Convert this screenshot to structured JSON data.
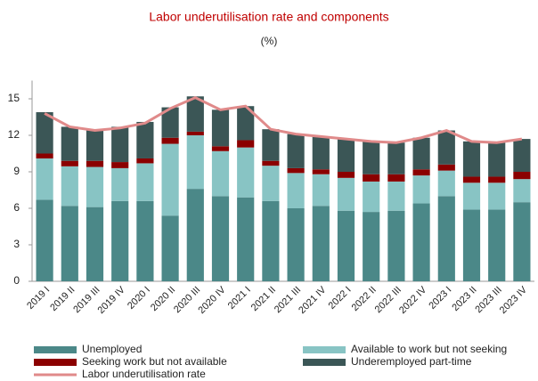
{
  "chart_data": {
    "type": "bar",
    "stacked": true,
    "title": "Labor underutilisation rate and components",
    "subtitle": "(%)",
    "categories": [
      "2019 I",
      "2019 II",
      "2019 III",
      "2019 IV",
      "2020 I",
      "2020 II",
      "2020 III",
      "2020 IV",
      "2021 I",
      "2021 II",
      "2021 III",
      "2021 IV",
      "2022 I",
      "2022 II",
      "2022 III",
      "2022 IV",
      "2023 I",
      "2023 II",
      "2023 III",
      "2023 IV"
    ],
    "series": [
      {
        "name": "Unemployed",
        "color": "#4b8888",
        "values": [
          6.7,
          6.2,
          6.1,
          6.6,
          6.6,
          5.4,
          7.6,
          7.0,
          6.9,
          6.6,
          6.0,
          6.2,
          5.8,
          5.7,
          5.8,
          6.4,
          7.0,
          5.9,
          5.9,
          6.5
        ]
      },
      {
        "name": "Available to work but not seeking",
        "color": "#88c4c4",
        "values": [
          3.4,
          3.25,
          3.3,
          2.7,
          3.1,
          5.9,
          4.4,
          3.7,
          4.1,
          2.9,
          2.9,
          2.6,
          2.7,
          2.5,
          2.4,
          2.3,
          2.1,
          2.2,
          2.2,
          1.9
        ]
      },
      {
        "name": "Seeking work but not available",
        "color": "#8b0000",
        "values": [
          0.4,
          0.45,
          0.5,
          0.5,
          0.4,
          0.5,
          0.3,
          0.4,
          0.6,
          0.4,
          0.4,
          0.4,
          0.5,
          0.6,
          0.6,
          0.5,
          0.5,
          0.5,
          0.5,
          0.6
        ]
      },
      {
        "name": "Underemployed part-time",
        "color": "#3b5656",
        "values": [
          3.4,
          2.8,
          2.6,
          2.9,
          3.0,
          2.5,
          2.9,
          3.0,
          2.8,
          2.6,
          2.8,
          2.7,
          2.7,
          2.7,
          2.6,
          2.6,
          2.8,
          2.9,
          2.8,
          2.7
        ]
      },
      {
        "name": "Labor underutilisation rate",
        "color": "#e08a8a",
        "type": "line",
        "values": [
          13.8,
          12.7,
          12.4,
          12.6,
          13.0,
          14.2,
          15.1,
          14.1,
          14.4,
          12.5,
          12.1,
          11.9,
          11.7,
          11.5,
          11.4,
          11.8,
          12.4,
          11.5,
          11.4,
          11.7
        ]
      }
    ],
    "ylim": [
      0,
      16.5
    ],
    "yticks": [
      0,
      3,
      6,
      9,
      12,
      15
    ]
  }
}
